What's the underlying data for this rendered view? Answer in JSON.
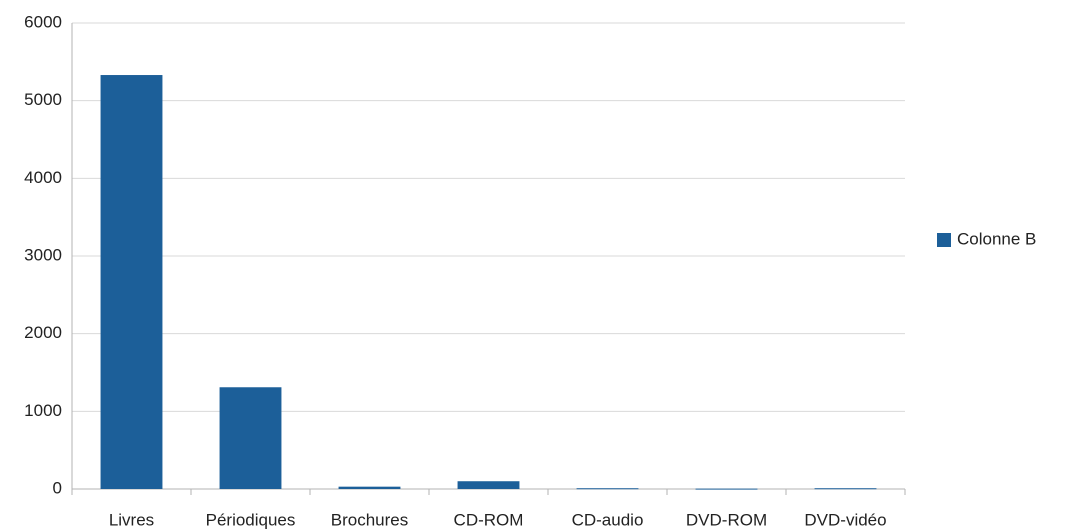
{
  "chart_data": {
    "type": "bar",
    "categories": [
      "Livres",
      "Périodiques",
      "Brochures",
      "CD-ROM",
      "CD-audio",
      "DVD-ROM",
      "DVD-vidéo"
    ],
    "series": [
      {
        "name": "Colonne B",
        "color": "#1c5f99",
        "values": [
          5330,
          1310,
          30,
          100,
          10,
          5,
          10
        ]
      }
    ],
    "ylim": [
      0,
      6000
    ],
    "yticks": [
      0,
      1000,
      2000,
      3000,
      4000,
      5000,
      6000
    ],
    "grid": true,
    "legend": "right"
  }
}
